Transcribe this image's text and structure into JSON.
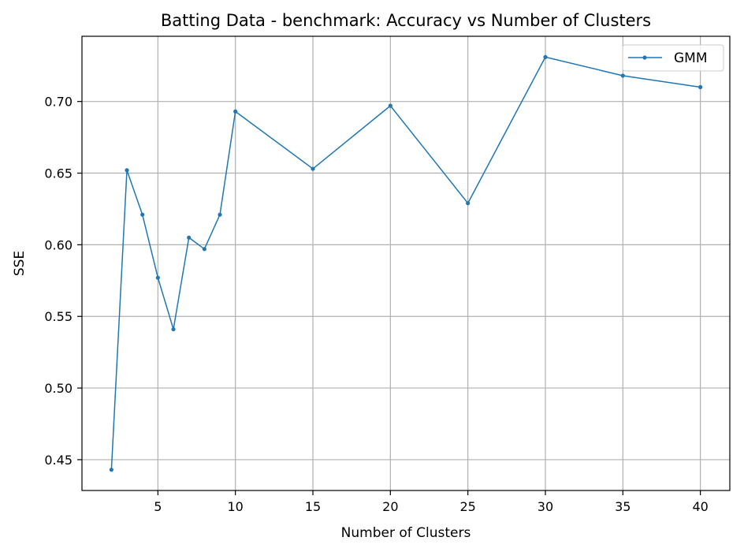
{
  "chart_data": {
    "type": "line",
    "title": "Batting Data - benchmark: Accuracy vs Number of Clusters",
    "xlabel": "Number of Clusters",
    "ylabel": "SSE",
    "xlim": [
      0.1,
      41.9
    ],
    "ylim": [
      0.4285,
      0.7455
    ],
    "xticks": [
      5,
      10,
      15,
      20,
      25,
      30,
      35,
      40
    ],
    "yticks": [
      0.45,
      0.5,
      0.55,
      0.6,
      0.65,
      0.7
    ],
    "ytick_labels": [
      "0.45",
      "0.50",
      "0.55",
      "0.60",
      "0.65",
      "0.70"
    ],
    "grid": true,
    "legend_position": "top-right",
    "series": [
      {
        "name": "GMM",
        "color": "#1f77b4",
        "marker": "point",
        "x": [
          2,
          3,
          4,
          5,
          6,
          7,
          8,
          9,
          10,
          15,
          20,
          25,
          30,
          35,
          40
        ],
        "y": [
          0.443,
          0.652,
          0.621,
          0.577,
          0.541,
          0.605,
          0.597,
          0.621,
          0.693,
          0.653,
          0.697,
          0.629,
          0.731,
          0.718,
          0.71
        ]
      }
    ]
  }
}
